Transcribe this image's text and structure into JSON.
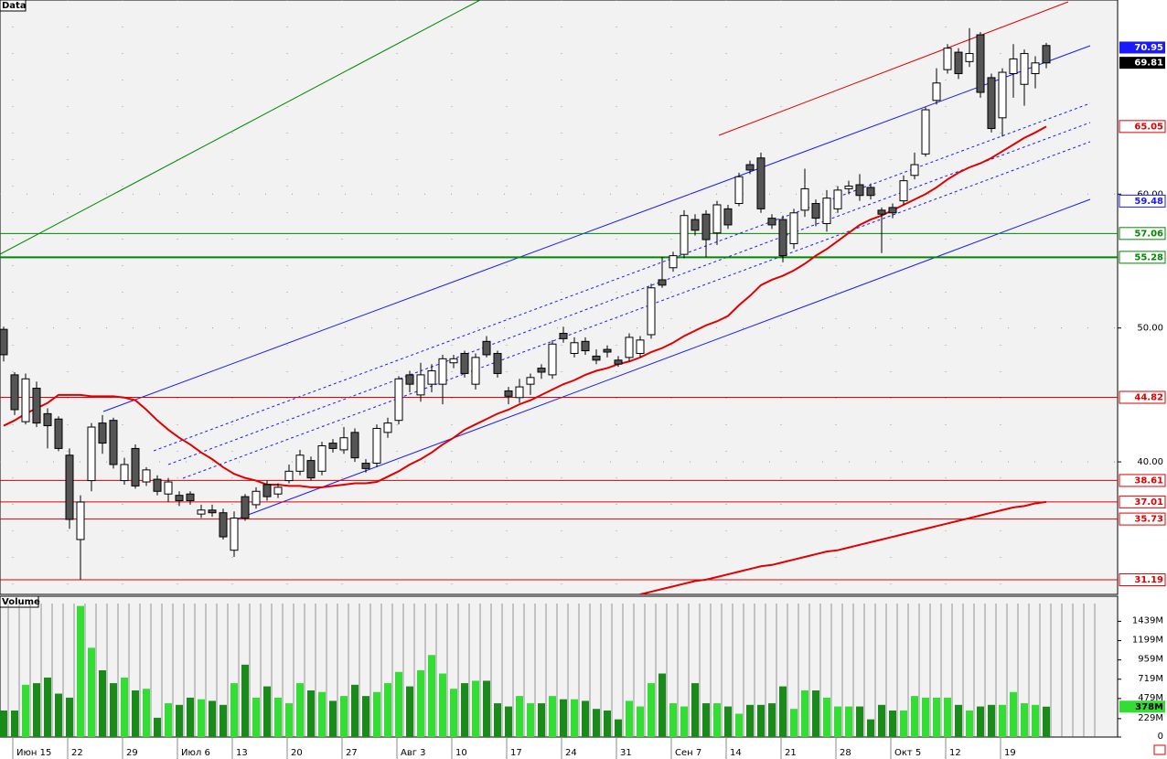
{
  "chart_data": {
    "type": "candlestick",
    "title": "Data",
    "categories": [
      null,
      "Июн 15",
      null,
      null,
      null,
      null,
      "22",
      null,
      null,
      null,
      null,
      "29",
      null,
      null,
      null,
      null,
      "Июл 6",
      null,
      null,
      null,
      null,
      "13",
      null,
      null,
      null,
      null,
      "20",
      null,
      null,
      null,
      null,
      "27",
      null,
      null,
      null,
      null,
      "Авг 3",
      null,
      null,
      null,
      null,
      "10",
      null,
      null,
      null,
      null,
      "17",
      null,
      null,
      null,
      null,
      "24",
      null,
      null,
      null,
      null,
      "31",
      null,
      null,
      null,
      null,
      "Сен 7",
      null,
      null,
      null,
      null,
      "14",
      null,
      null,
      null,
      null,
      "21",
      null,
      null,
      null,
      null,
      "28",
      null,
      null,
      null,
      null,
      "Окт 5",
      null,
      null,
      null,
      null,
      "12",
      null,
      null,
      null,
      null,
      "19",
      null,
      null,
      null,
      null
    ],
    "ohlc": [
      [
        49.9,
        50.1,
        47.5,
        48.0
      ],
      [
        46.5,
        46.7,
        43.5,
        43.9
      ],
      [
        43.0,
        46.6,
        42.8,
        46.2
      ],
      [
        45.5,
        46.0,
        42.6,
        42.9
      ],
      [
        43.6,
        44.0,
        41.0,
        42.7
      ],
      [
        43.2,
        43.4,
        40.8,
        41.0
      ],
      [
        40.5,
        41.0,
        35.0,
        35.7
      ],
      [
        34.2,
        37.5,
        31.2,
        37.0
      ],
      [
        38.6,
        42.9,
        37.8,
        42.6
      ],
      [
        42.9,
        43.5,
        40.6,
        41.4
      ],
      [
        43.1,
        43.3,
        39.5,
        39.8
      ],
      [
        38.6,
        40.3,
        38.3,
        39.8
      ],
      [
        41.0,
        41.3,
        38.0,
        38.2
      ],
      [
        38.5,
        39.6,
        38.2,
        39.4
      ],
      [
        38.7,
        39.0,
        37.5,
        37.8
      ],
      [
        37.6,
        38.8,
        37.0,
        38.5
      ],
      [
        37.5,
        37.8,
        36.7,
        37.1
      ],
      [
        37.6,
        37.8,
        36.8,
        37.1
      ],
      [
        36.1,
        36.8,
        35.8,
        36.4
      ],
      [
        36.4,
        36.8,
        35.9,
        36.2
      ],
      [
        36.2,
        36.5,
        34.2,
        34.4
      ],
      [
        33.4,
        36.3,
        32.9,
        35.8
      ],
      [
        37.4,
        37.6,
        35.6,
        35.8
      ],
      [
        36.8,
        38.1,
        36.5,
        37.8
      ],
      [
        38.3,
        38.6,
        37.1,
        37.4
      ],
      [
        37.6,
        38.4,
        37.3,
        38.1
      ],
      [
        38.6,
        39.8,
        38.4,
        39.3
      ],
      [
        39.3,
        40.9,
        39.0,
        40.5
      ],
      [
        40.1,
        40.4,
        38.6,
        38.8
      ],
      [
        39.3,
        41.5,
        39.0,
        41.2
      ],
      [
        41.4,
        41.7,
        40.7,
        41.0
      ],
      [
        40.9,
        42.6,
        40.6,
        41.8
      ],
      [
        42.2,
        42.5,
        40.0,
        40.3
      ],
      [
        39.9,
        40.2,
        39.2,
        39.5
      ],
      [
        39.9,
        42.8,
        39.6,
        42.5
      ],
      [
        42.2,
        43.3,
        41.8,
        42.9
      ],
      [
        43.1,
        46.4,
        42.8,
        46.2
      ],
      [
        46.5,
        46.8,
        45.2,
        45.8
      ],
      [
        45.0,
        47.4,
        44.5,
        46.5
      ],
      [
        45.8,
        47.3,
        45.2,
        46.8
      ],
      [
        45.8,
        48.0,
        44.3,
        47.7
      ],
      [
        47.4,
        48.0,
        47.0,
        47.7
      ],
      [
        48.1,
        48.3,
        46.3,
        46.6
      ],
      [
        45.8,
        48.1,
        45.4,
        47.8
      ],
      [
        49.0,
        49.4,
        47.8,
        48.0
      ],
      [
        48.1,
        48.3,
        46.3,
        46.6
      ],
      [
        45.3,
        45.6,
        44.3,
        44.9
      ],
      [
        44.8,
        46.2,
        44.4,
        45.6
      ],
      [
        45.8,
        46.6,
        45.0,
        46.3
      ],
      [
        47.0,
        47.3,
        46.2,
        46.7
      ],
      [
        46.5,
        49.1,
        46.2,
        48.8
      ],
      [
        49.6,
        50.1,
        48.9,
        49.2
      ],
      [
        48.1,
        49.3,
        47.8,
        48.9
      ],
      [
        49.0,
        49.3,
        48.0,
        48.3
      ],
      [
        47.9,
        48.4,
        47.3,
        47.6
      ],
      [
        48.4,
        48.7,
        47.8,
        48.2
      ],
      [
        47.6,
        47.9,
        47.1,
        47.3
      ],
      [
        47.8,
        49.6,
        47.5,
        49.3
      ],
      [
        48.1,
        49.4,
        47.8,
        49.1
      ],
      [
        49.5,
        53.3,
        49.2,
        53.0
      ],
      [
        53.6,
        55.3,
        53.0,
        53.2
      ],
      [
        54.5,
        55.7,
        54.2,
        55.4
      ],
      [
        55.5,
        58.8,
        55.2,
        58.4
      ],
      [
        58.1,
        58.5,
        56.9,
        57.3
      ],
      [
        58.5,
        58.8,
        55.3,
        56.6
      ],
      [
        57.1,
        59.5,
        56.2,
        59.2
      ],
      [
        58.9,
        59.2,
        57.4,
        57.7
      ],
      [
        59.3,
        61.6,
        59.1,
        61.3
      ],
      [
        62.2,
        62.5,
        61.5,
        61.8
      ],
      [
        62.7,
        63.1,
        58.6,
        58.9
      ],
      [
        58.2,
        58.5,
        57.4,
        57.7
      ],
      [
        58.1,
        58.4,
        54.9,
        55.4
      ],
      [
        56.3,
        58.9,
        55.9,
        58.6
      ],
      [
        58.8,
        61.9,
        58.3,
        60.4
      ],
      [
        59.3,
        59.6,
        57.6,
        58.2
      ],
      [
        57.8,
        60.3,
        57.2,
        59.7
      ],
      [
        58.9,
        60.6,
        58.6,
        60.3
      ],
      [
        60.4,
        61.0,
        60.0,
        60.6
      ],
      [
        60.7,
        61.5,
        59.5,
        59.9
      ],
      [
        60.5,
        60.8,
        59.6,
        59.9
      ],
      [
        58.8,
        59.0,
        55.6,
        58.5
      ],
      [
        59.0,
        59.3,
        58.2,
        58.6
      ],
      [
        59.5,
        61.4,
        59.2,
        61.0
      ],
      [
        61.4,
        63.1,
        61.1,
        62.2
      ],
      [
        63.0,
        66.5,
        62.8,
        66.3
      ],
      [
        67.0,
        69.4,
        66.7,
        68.3
      ],
      [
        69.3,
        71.2,
        69.0,
        70.9
      ],
      [
        70.6,
        70.9,
        68.6,
        69.0
      ],
      [
        69.9,
        72.4,
        69.5,
        70.5
      ],
      [
        71.9,
        72.1,
        67.2,
        67.6
      ],
      [
        68.7,
        69.0,
        64.6,
        64.9
      ],
      [
        65.7,
        69.4,
        64.3,
        69.1
      ],
      [
        69.0,
        71.2,
        67.2,
        70.1
      ],
      [
        68.2,
        70.8,
        66.6,
        70.5
      ],
      [
        69.0,
        70.3,
        67.9,
        69.8
      ],
      [
        71.1,
        71.3,
        69.4,
        69.8
      ]
    ],
    "up_color": "#ffffff",
    "down_color": "#555555",
    "ma": [
      {
        "color": "#e00000",
        "values": [
          42.7,
          43.1,
          43.6,
          44.0,
          44.4,
          45.0,
          45.0,
          45.0,
          44.9,
          44.9,
          44.9,
          44.8,
          44.6,
          43.9,
          43.1,
          42.4,
          41.8,
          41.3,
          40.7,
          40.2,
          39.6,
          39.1,
          38.8,
          38.6,
          38.3,
          38.3,
          38.2,
          38.2,
          38.1,
          38.1,
          38.2,
          38.3,
          38.4,
          38.4,
          38.5,
          38.9,
          39.3,
          39.8,
          40.2,
          40.7,
          41.3,
          41.8,
          42.4,
          42.8,
          43.2,
          43.6,
          43.9,
          44.3,
          44.6,
          45.0,
          45.4,
          45.8,
          46.1,
          46.5,
          46.8,
          47.0,
          47.3,
          47.5,
          47.8,
          48.2,
          48.5,
          48.9,
          49.4,
          49.8,
          50.2,
          50.5,
          50.9,
          51.7,
          52.4,
          53.2,
          53.6,
          53.9,
          54.3,
          54.8,
          55.4,
          55.9,
          56.5,
          57.1,
          57.7,
          58.1,
          58.4,
          58.8,
          59.2,
          59.6,
          60.0,
          60.5,
          61.1,
          61.6,
          62.0,
          62.3,
          62.7,
          63.2,
          63.7,
          64.2,
          64.6,
          65.05
        ]
      },
      {
        "color": "#e00000",
        "values": [
          null,
          null,
          null,
          null,
          null,
          null,
          null,
          null,
          null,
          null,
          null,
          null,
          null,
          null,
          null,
          null,
          null,
          null,
          null,
          null,
          null,
          null,
          null,
          null,
          null,
          null,
          null,
          null,
          null,
          null,
          null,
          null,
          null,
          null,
          null,
          null,
          null,
          null,
          null,
          null,
          null,
          null,
          null,
          null,
          null,
          null,
          null,
          null,
          null,
          null,
          null,
          null,
          null,
          null,
          null,
          null,
          null,
          null,
          30.1,
          30.3,
          30.5,
          30.7,
          30.9,
          31.1,
          31.2,
          31.4,
          31.6,
          31.8,
          32.0,
          32.2,
          32.3,
          32.5,
          32.7,
          32.9,
          33.1,
          33.3,
          33.4,
          33.6,
          33.8,
          34.0,
          34.2,
          34.4,
          34.6,
          34.8,
          35.0,
          35.2,
          35.4,
          35.6,
          35.8,
          36.0,
          36.2,
          36.4,
          36.6,
          36.7,
          36.9,
          37.01
        ]
      }
    ],
    "ylim": [
      30.1,
      74.5
    ],
    "yticks": [
      {
        "value": 60,
        "label": "60.00"
      },
      {
        "value": 50,
        "label": "50.00"
      },
      {
        "value": 40,
        "label": "40.00"
      }
    ],
    "grid": true,
    "levels": [
      {
        "value": 70.95,
        "color": "#1a1aff",
        "style": "filled",
        "line": false
      },
      {
        "value": 69.81,
        "color": "#000000",
        "style": "filled",
        "line": false
      },
      {
        "value": 65.05,
        "color": "#e00000",
        "style": "outline",
        "line": false
      },
      {
        "value": 59.48,
        "color": "#1a1aff",
        "style": "outline",
        "line": false
      },
      {
        "value": 57.06,
        "color": "#008800",
        "style": "outline",
        "line": true
      },
      {
        "value": 55.28,
        "color": "#008800",
        "style": "outline",
        "line": true
      },
      {
        "value": 44.82,
        "color": "#e00000",
        "style": "outline",
        "line": true
      },
      {
        "value": 38.61,
        "color": "#e00000",
        "style": "outline",
        "line": true
      },
      {
        "value": 37.01,
        "color": "#e00000",
        "style": "outline",
        "line": true
      },
      {
        "value": 35.73,
        "color": "#e00000",
        "style": "outline",
        "line": true
      },
      {
        "value": 31.19,
        "color": "#e00000",
        "style": "outline",
        "line": true
      }
    ],
    "volume": {
      "title": "Volume",
      "values": [
        330,
        330,
        650,
        670,
        740,
        540,
        490,
        1630,
        1110,
        830,
        670,
        740,
        580,
        600,
        240,
        420,
        400,
        490,
        470,
        450,
        400,
        670,
        900,
        490,
        630,
        490,
        420,
        670,
        580,
        560,
        450,
        510,
        650,
        510,
        560,
        670,
        810,
        630,
        830,
        1020,
        790,
        600,
        670,
        700,
        700,
        420,
        380,
        510,
        420,
        420,
        510,
        470,
        470,
        450,
        350,
        330,
        220,
        450,
        380,
        670,
        790,
        420,
        380,
        670,
        420,
        420,
        380,
        290,
        400,
        400,
        420,
        630,
        350,
        580,
        580,
        490,
        380,
        380,
        380,
        220,
        400,
        330,
        330,
        510,
        490,
        490,
        490,
        400,
        330,
        380,
        400,
        400,
        560,
        420,
        400,
        378
      ],
      "up_color": "#33dd33",
      "down_color": "#1a8a1a",
      "ylim": [
        0,
        1660
      ],
      "yticks": [
        0,
        {
          "value": 229,
          "label": "229M"
        },
        {
          "value": 479,
          "label": "479M"
        },
        {
          "value": 719,
          "label": "719M"
        },
        {
          "value": 959,
          "label": "959M"
        },
        {
          "value": 1199,
          "label": "1199M"
        },
        {
          "value": 1439,
          "label": "1439M"
        }
      ],
      "marker": {
        "value": 378,
        "label": "378M",
        "color": "#33dd33"
      }
    }
  }
}
